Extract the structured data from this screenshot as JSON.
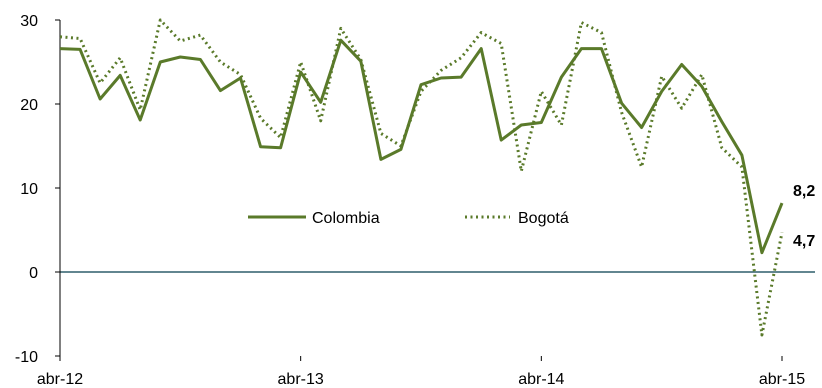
{
  "chart_data": {
    "type": "line",
    "title": "",
    "xlabel": "",
    "ylabel": "",
    "ylim": [
      -10,
      30
    ],
    "y_ticks": [
      -10,
      0,
      10,
      20,
      30
    ],
    "x_tick_labels": [
      "abr-12",
      "abr-13",
      "abr-14",
      "abr-15"
    ],
    "x_tick_indices": [
      0,
      12,
      24,
      36
    ],
    "zero_line": true,
    "grid": false,
    "legend_position": "center",
    "colors": {
      "series": "#5a7a2a",
      "zero_line": "#2f5f6b",
      "axis": "#000000"
    },
    "series": [
      {
        "name": "Colombia",
        "style": "solid",
        "values": [
          26.6,
          26.5,
          20.6,
          23.4,
          18.1,
          25.0,
          25.6,
          25.3,
          21.6,
          23.1,
          14.9,
          14.8,
          23.8,
          20.2,
          27.6,
          25.1,
          13.4,
          14.6,
          22.3,
          23.1,
          23.2,
          26.6,
          15.7,
          17.5,
          17.8,
          23.2,
          26.6,
          26.6,
          20.1,
          17.2,
          21.5,
          24.7,
          22.1,
          17.9,
          13.9,
          2.3,
          8.2
        ]
      },
      {
        "name": "Bogotá",
        "style": "dotted",
        "values": [
          28.0,
          27.8,
          22.5,
          25.5,
          19.3,
          30.0,
          27.5,
          28.2,
          25.0,
          23.5,
          18.3,
          16.0,
          25.0,
          18.0,
          29.0,
          25.3,
          16.5,
          15.0,
          21.5,
          24.0,
          25.5,
          28.5,
          27.2,
          12.0,
          21.5,
          17.5,
          29.7,
          28.5,
          19.0,
          12.5,
          23.3,
          19.5,
          23.5,
          14.8,
          12.5,
          -7.5,
          4.7
        ]
      }
    ],
    "end_labels": [
      {
        "series": "Colombia",
        "text": "8,2"
      },
      {
        "series": "Bogotá",
        "text": "4,7"
      }
    ]
  }
}
